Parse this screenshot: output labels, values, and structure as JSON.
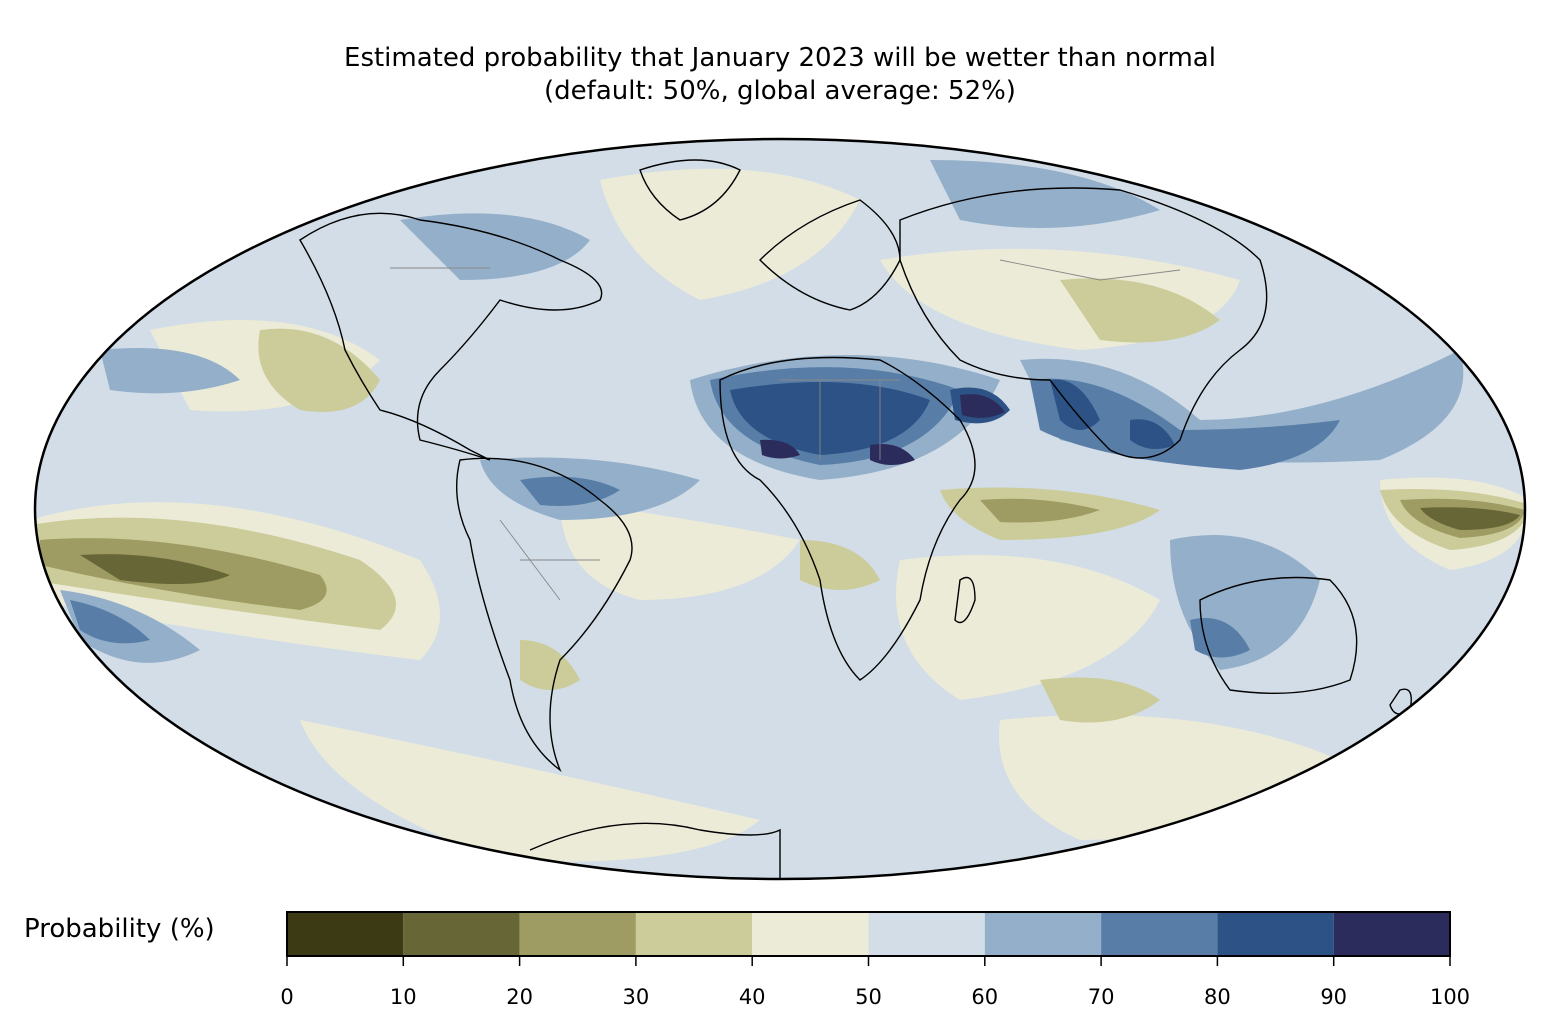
{
  "title_line1": "Estimated probability that January 2023 will be wetter than normal",
  "title_line2": "(default: 50%, global average: 52%)",
  "projection": "Mollweide",
  "colorbar": {
    "label": "Probability (%)",
    "ticks": [
      "0",
      "10",
      "20",
      "30",
      "40",
      "50",
      "60",
      "70",
      "80",
      "90",
      "100"
    ],
    "bins": [
      {
        "min": 0,
        "max": 10,
        "color": "#3b3a14"
      },
      {
        "min": 10,
        "max": 20,
        "color": "#666637"
      },
      {
        "min": 20,
        "max": 30,
        "color": "#9e9c62"
      },
      {
        "min": 30,
        "max": 40,
        "color": "#cccc9a"
      },
      {
        "min": 40,
        "max": 50,
        "color": "#ecebd8"
      },
      {
        "min": 50,
        "max": 60,
        "color": "#d2dde7"
      },
      {
        "min": 60,
        "max": 70,
        "color": "#94afc9"
      },
      {
        "min": 70,
        "max": 80,
        "color": "#587ea8"
      },
      {
        "min": 80,
        "max": 90,
        "color": "#2c5286"
      },
      {
        "min": 90,
        "max": 100,
        "color": "#2c2c5c"
      }
    ]
  }
}
